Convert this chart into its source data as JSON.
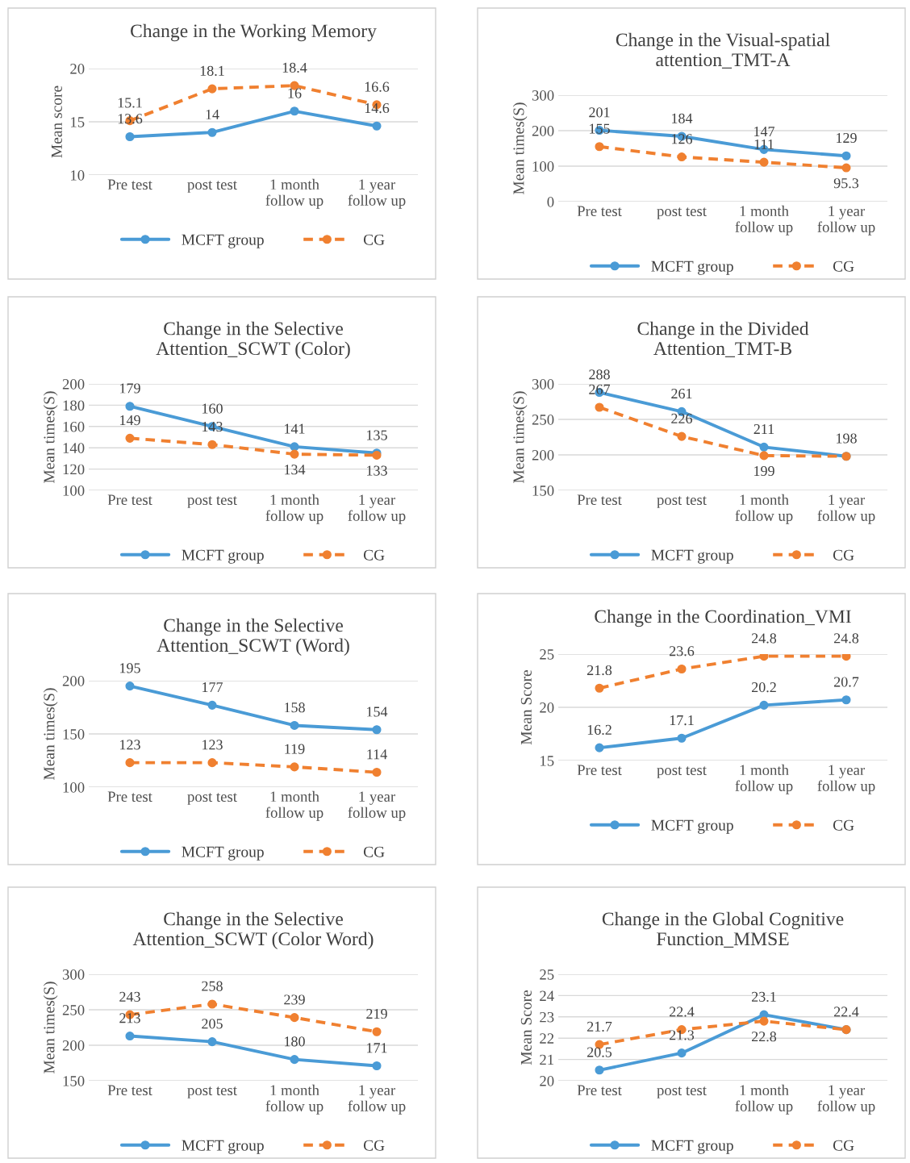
{
  "chart_data": [
    {
      "type": "line",
      "title": "Change in the Working Memory",
      "ylabel": "Mean score",
      "categories": [
        "Pre test",
        "post test",
        "1 month\nfollow up",
        "1 year\nfollow up"
      ],
      "ylim": [
        10,
        20
      ],
      "yticks": [
        10,
        15,
        20
      ],
      "grid": "y",
      "legend": "bottom",
      "marker": "circle",
      "data_labels": true,
      "series": [
        {
          "name": "MCFT group",
          "color": "#4a9bd6",
          "line_style": "solid",
          "values": [
            13.6,
            14,
            16,
            14.6
          ]
        },
        {
          "name": "CG",
          "color": "#f08030",
          "line_style": "dashed",
          "values": [
            15.1,
            18.1,
            18.4,
            16.6
          ]
        }
      ]
    },
    {
      "type": "line",
      "title": "Change in the Visual-spatial\nattention_TMT-A",
      "ylabel": "Mean times(S)",
      "categories": [
        "Pre test",
        "post test",
        "1 month\nfollow up",
        "1 year\nfollow up"
      ],
      "ylim": [
        0,
        300
      ],
      "yticks": [
        0,
        100,
        200,
        300
      ],
      "grid": "y",
      "legend": "bottom",
      "marker": "circle",
      "data_labels": true,
      "series": [
        {
          "name": "MCFT group",
          "color": "#4a9bd6",
          "line_style": "solid",
          "values": [
            201,
            184,
            147,
            129
          ]
        },
        {
          "name": "CG",
          "color": "#f08030",
          "line_style": "dashed",
          "values": [
            155,
            126,
            111,
            95.3
          ]
        }
      ]
    },
    {
      "type": "line",
      "title": "Change in the Selective\nAttention_SCWT (Color)",
      "ylabel": "Mean times(S)",
      "categories": [
        "Pre test",
        "post test",
        "1 month\nfollow up",
        "1 year\nfollow up"
      ],
      "ylim": [
        100,
        200
      ],
      "yticks": [
        100,
        120,
        140,
        160,
        180,
        200
      ],
      "grid": "y",
      "legend": "bottom",
      "marker": "circle",
      "data_labels": true,
      "series": [
        {
          "name": "MCFT group",
          "color": "#4a9bd6",
          "line_style": "solid",
          "values": [
            179,
            160,
            141,
            135
          ]
        },
        {
          "name": "CG",
          "color": "#f08030",
          "line_style": "dashed",
          "values": [
            149,
            143,
            134,
            133
          ]
        }
      ]
    },
    {
      "type": "line",
      "title": "Change in the Divided\nAttention_TMT-B",
      "ylabel": "Mean times(S)",
      "categories": [
        "Pre test",
        "post test",
        "1 month\nfollow up",
        "1 year\nfollow up"
      ],
      "ylim": [
        150,
        300
      ],
      "yticks": [
        150,
        200,
        250,
        300
      ],
      "grid": "y",
      "legend": "bottom",
      "marker": "circle",
      "data_labels": true,
      "series": [
        {
          "name": "MCFT group",
          "color": "#4a9bd6",
          "line_style": "solid",
          "values": [
            288,
            261,
            211,
            198
          ]
        },
        {
          "name": "CG",
          "color": "#f08030",
          "line_style": "dashed",
          "values": [
            267,
            226,
            199,
            198
          ],
          "value_labels": [
            "267",
            "226",
            "199",
            null
          ]
        }
      ]
    },
    {
      "type": "line",
      "title": "Change in the Selective\nAttention_SCWT (Word)",
      "ylabel": "Mean times(S)",
      "categories": [
        "Pre test",
        "post test",
        "1 month\nfollow up",
        "1 year\nfollow up"
      ],
      "ylim": [
        100,
        200
      ],
      "yticks": [
        100,
        150,
        200
      ],
      "grid": "y",
      "legend": "bottom",
      "marker": "circle",
      "data_labels": true,
      "series": [
        {
          "name": "MCFT group",
          "color": "#4a9bd6",
          "line_style": "solid",
          "values": [
            195,
            177,
            158,
            154
          ]
        },
        {
          "name": "CG",
          "color": "#f08030",
          "line_style": "dashed",
          "values": [
            123,
            123,
            119,
            114
          ]
        }
      ]
    },
    {
      "type": "line",
      "title": "Change in the Coordination_VMI",
      "ylabel": "Mean Score",
      "categories": [
        "Pre test",
        "post test",
        "1 month\nfollow up",
        "1 year\nfollow up"
      ],
      "ylim": [
        15,
        25
      ],
      "yticks": [
        15,
        20,
        25
      ],
      "grid": "y",
      "legend": "bottom",
      "marker": "circle",
      "data_labels": true,
      "series": [
        {
          "name": "MCFT group",
          "color": "#4a9bd6",
          "line_style": "solid",
          "values": [
            16.2,
            17.1,
            20.2,
            20.7
          ]
        },
        {
          "name": "CG",
          "color": "#f08030",
          "line_style": "dashed",
          "values": [
            21.8,
            23.6,
            24.8,
            24.8
          ]
        }
      ]
    },
    {
      "type": "line",
      "title": "Change in the Selective\nAttention_SCWT (Color Word)",
      "ylabel": "Mean times(S)",
      "categories": [
        "Pre test",
        "post test",
        "1 month\nfollow up",
        "1 year\nfollow up"
      ],
      "ylim": [
        150,
        300
      ],
      "yticks": [
        150,
        200,
        250,
        300
      ],
      "grid": "y",
      "legend": "bottom",
      "marker": "circle",
      "data_labels": true,
      "series": [
        {
          "name": "MCFT group",
          "color": "#4a9bd6",
          "line_style": "solid",
          "values": [
            213,
            205,
            180,
            171
          ]
        },
        {
          "name": "CG",
          "color": "#f08030",
          "line_style": "dashed",
          "values": [
            243,
            258,
            239,
            219
          ]
        }
      ]
    },
    {
      "type": "line",
      "title": "Change in the Global Cognitive\nFunction_MMSE",
      "ylabel": "Mean Score",
      "categories": [
        "Pre test",
        "post test",
        "1 month\nfollow up",
        "1 year\nfollow up"
      ],
      "ylim": [
        20,
        25
      ],
      "yticks": [
        20,
        21,
        22,
        23,
        24,
        25
      ],
      "grid": "y",
      "legend": "bottom",
      "marker": "circle",
      "data_labels": true,
      "series": [
        {
          "name": "MCFT group",
          "color": "#4a9bd6",
          "line_style": "solid",
          "values": [
            20.5,
            21.3,
            23.1,
            22.4
          ]
        },
        {
          "name": "CG",
          "color": "#f08030",
          "line_style": "dashed",
          "values": [
            21.7,
            22.4,
            22.8,
            22.4
          ],
          "value_labels": [
            "21.7",
            "22.4",
            "22.8",
            null
          ]
        }
      ]
    }
  ]
}
